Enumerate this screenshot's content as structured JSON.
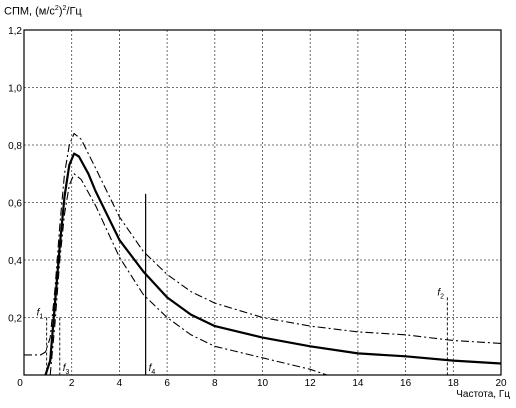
{
  "chart_data": {
    "type": "line",
    "ylabel_parts": [
      "СПМ, (м/с",
      "2",
      ")",
      "2",
      "/Гц"
    ],
    "xlabel": "Частота, Гц",
    "xlim": [
      0,
      20
    ],
    "ylim": [
      0,
      1.2
    ],
    "x_ticks": [
      "0",
      "2",
      "4",
      "6",
      "8",
      "10",
      "12",
      "14",
      "16",
      "18",
      "20"
    ],
    "y_ticks": [
      "0",
      "0,2",
      "0,4",
      "0,6",
      "0,8",
      "1,0",
      "1,2"
    ],
    "grid": true,
    "series": [
      {
        "style": "dash-dot",
        "points": [
          [
            0,
            0.07
          ],
          [
            0.7,
            0.07
          ],
          [
            0.9,
            0.08
          ],
          [
            1.1,
            0.13
          ],
          [
            1.3,
            0.3
          ],
          [
            1.5,
            0.52
          ],
          [
            1.7,
            0.7
          ],
          [
            1.9,
            0.8
          ],
          [
            2.1,
            0.84
          ],
          [
            2.4,
            0.82
          ],
          [
            3,
            0.72
          ],
          [
            4,
            0.55
          ],
          [
            5,
            0.43
          ],
          [
            6,
            0.35
          ],
          [
            7,
            0.29
          ],
          [
            8,
            0.25
          ],
          [
            10,
            0.2
          ],
          [
            12,
            0.17
          ],
          [
            14,
            0.15
          ],
          [
            16,
            0.14
          ],
          [
            18,
            0.12
          ],
          [
            20,
            0.11
          ]
        ]
      },
      {
        "style": "solid",
        "points": [
          [
            0.9,
            0
          ],
          [
            1.1,
            0.05
          ],
          [
            1.3,
            0.25
          ],
          [
            1.5,
            0.45
          ],
          [
            1.7,
            0.62
          ],
          [
            1.9,
            0.73
          ],
          [
            2.1,
            0.77
          ],
          [
            2.3,
            0.76
          ],
          [
            2.7,
            0.7
          ],
          [
            3,
            0.64
          ],
          [
            4,
            0.47
          ],
          [
            5,
            0.36
          ],
          [
            6,
            0.27
          ],
          [
            7,
            0.21
          ],
          [
            8,
            0.17
          ],
          [
            10,
            0.13
          ],
          [
            12,
            0.1
          ],
          [
            14,
            0.075
          ],
          [
            16,
            0.065
          ],
          [
            18,
            0.05
          ],
          [
            20,
            0.04
          ]
        ]
      },
      {
        "style": "dash-dot",
        "points": [
          [
            1.1,
            0
          ],
          [
            1.3,
            0.18
          ],
          [
            1.5,
            0.4
          ],
          [
            1.7,
            0.56
          ],
          [
            1.9,
            0.66
          ],
          [
            2.1,
            0.7
          ],
          [
            2.4,
            0.68
          ],
          [
            3,
            0.59
          ],
          [
            4,
            0.41
          ],
          [
            5,
            0.28
          ],
          [
            6,
            0.2
          ],
          [
            7,
            0.14
          ],
          [
            8,
            0.1
          ],
          [
            10,
            0.06
          ],
          [
            12,
            0.02
          ],
          [
            12.7,
            0
          ]
        ]
      }
    ],
    "markers": [
      {
        "x": 0.95,
        "top": 0.2,
        "style": "dashed",
        "label": "f",
        "sub": "1",
        "label_pos": "upper-left"
      },
      {
        "x": 1.5,
        "top": 0.2,
        "style": "dashed",
        "label": "f",
        "sub": "3",
        "label_pos": "lower-right"
      },
      {
        "x": 5.1,
        "top": 0.63,
        "style": "solid",
        "label": "f",
        "sub": "4",
        "label_pos": "lower-right"
      },
      {
        "x": 17.75,
        "top": 0.27,
        "style": "dashed",
        "label": "f",
        "sub": "2",
        "label_pos": "upper-left"
      }
    ]
  }
}
